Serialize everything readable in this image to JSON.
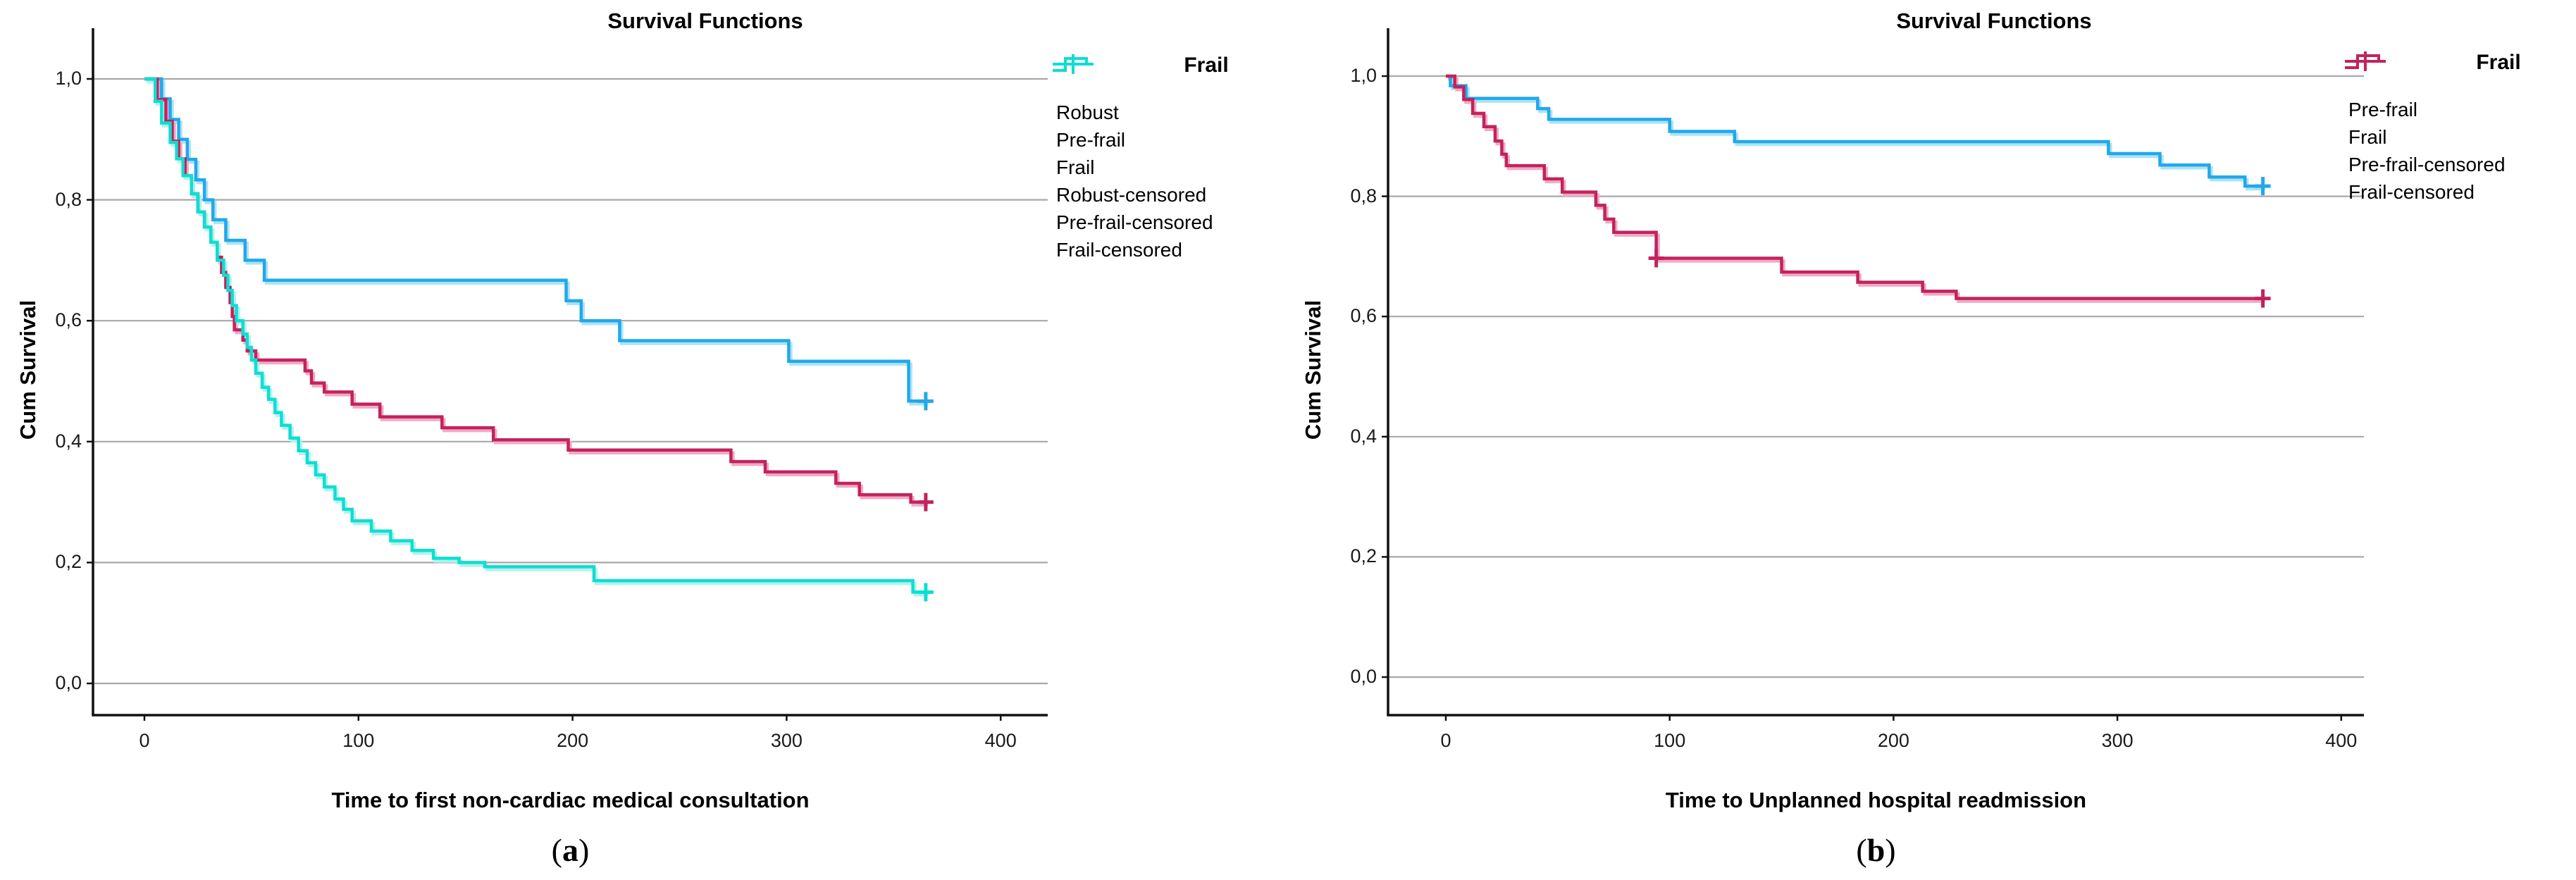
{
  "figure": {
    "background": "#ffffff",
    "panel_count": 2
  },
  "colors": {
    "blue": "#23A8E8",
    "blue_shadow": "#A9E4F9",
    "crimson": "#C2235C",
    "crimson_shadow": "#F2A9C6",
    "cyan": "#0EDED2",
    "cyan_shadow": "#AEF4EE",
    "gridline": "#A8A8A8",
    "axis": "#111111",
    "text": "#000000"
  },
  "chart_data": [
    {
      "type": "line",
      "step": true,
      "title": "Survival Functions",
      "xlabel": "Time to first non-cardiac medical consultation",
      "ylabel": "Cum Survival",
      "legend_title": "Frail",
      "legend_position": "right",
      "grid": true,
      "caption": {
        "open": "(",
        "letter": "a",
        "close": ")"
      },
      "xlim": [
        -24,
        422
      ],
      "ylim": [
        -0.05,
        1.08
      ],
      "xticks": [
        0,
        100,
        200,
        300,
        400
      ],
      "xtick_labels": [
        "0",
        "100",
        "200",
        "300",
        "400"
      ],
      "yticks": [
        1.0,
        0.8,
        0.6,
        0.4,
        0.2,
        0.0
      ],
      "ytick_labels": [
        "1,0",
        "0,8",
        "0,6",
        "0,4",
        "0,2",
        "0,0"
      ],
      "series": [
        {
          "name": "Robust",
          "color": "#23A8E8",
          "shadow": "#A9E4F9",
          "points": [
            [
              0,
              1
            ],
            [
              8,
              0.967
            ],
            [
              12,
              0.933
            ],
            [
              16,
              0.9
            ],
            [
              20,
              0.867
            ],
            [
              24,
              0.833
            ],
            [
              28,
              0.8
            ],
            [
              32,
              0.767
            ],
            [
              38,
              0.733
            ],
            [
              47,
              0.7
            ],
            [
              56,
              0.667
            ],
            [
              197,
              0.633
            ],
            [
              204,
              0.6
            ],
            [
              222,
              0.567
            ],
            [
              301,
              0.533
            ],
            [
              357,
              0.467
            ],
            [
              365,
              0.467
            ]
          ],
          "censored": [
            [
              365,
              0.467
            ]
          ]
        },
        {
          "name": "Pre-frail",
          "color": "#C2235C",
          "shadow": "#F2A9C6",
          "points": [
            [
              0,
              1
            ],
            [
              6,
              0.966
            ],
            [
              10,
              0.93
            ],
            [
              13,
              0.897
            ],
            [
              16,
              0.868
            ],
            [
              19,
              0.84
            ],
            [
              22,
              0.81
            ],
            [
              25,
              0.78
            ],
            [
              28,
              0.755
            ],
            [
              31,
              0.73
            ],
            [
              34,
              0.705
            ],
            [
              36,
              0.68
            ],
            [
              38,
              0.655
            ],
            [
              40,
              0.63
            ],
            [
              41,
              0.607
            ],
            [
              42,
              0.585
            ],
            [
              46,
              0.568
            ],
            [
              48,
              0.55
            ],
            [
              52,
              0.535
            ],
            [
              75,
              0.517
            ],
            [
              78,
              0.497
            ],
            [
              84,
              0.482
            ],
            [
              97,
              0.462
            ],
            [
              110,
              0.441
            ],
            [
              139,
              0.423
            ],
            [
              163,
              0.403
            ],
            [
              198,
              0.386
            ],
            [
              274,
              0.367
            ],
            [
              290,
              0.35
            ],
            [
              323,
              0.331
            ],
            [
              334,
              0.312
            ],
            [
              358,
              0.3
            ],
            [
              365,
              0.3
            ]
          ],
          "censored": [
            [
              365,
              0.3
            ]
          ]
        },
        {
          "name": "Frail",
          "color": "#0EDED2",
          "shadow": "#AEF4EE",
          "points": [
            [
              0,
              1
            ],
            [
              5,
              0.963
            ],
            [
              8,
              0.927
            ],
            [
              12,
              0.895
            ],
            [
              15,
              0.868
            ],
            [
              18,
              0.84
            ],
            [
              22,
              0.81
            ],
            [
              25,
              0.78
            ],
            [
              28,
              0.755
            ],
            [
              31,
              0.73
            ],
            [
              34,
              0.7
            ],
            [
              37,
              0.675
            ],
            [
              39,
              0.65
            ],
            [
              41,
              0.625
            ],
            [
              43,
              0.6
            ],
            [
              46,
              0.578
            ],
            [
              48,
              0.556
            ],
            [
              50,
              0.535
            ],
            [
              52,
              0.513
            ],
            [
              55,
              0.49
            ],
            [
              58,
              0.47
            ],
            [
              61,
              0.448
            ],
            [
              64,
              0.427
            ],
            [
              68,
              0.406
            ],
            [
              72,
              0.385
            ],
            [
              76,
              0.365
            ],
            [
              80,
              0.345
            ],
            [
              84,
              0.325
            ],
            [
              89,
              0.305
            ],
            [
              93,
              0.288
            ],
            [
              97,
              0.269
            ],
            [
              106,
              0.252
            ],
            [
              115,
              0.236
            ],
            [
              125,
              0.22
            ],
            [
              135,
              0.207
            ],
            [
              147,
              0.2
            ],
            [
              159,
              0.193
            ],
            [
              210,
              0.17
            ],
            [
              359,
              0.151
            ],
            [
              365,
              0.151
            ]
          ],
          "censored": [
            [
              365,
              0.151
            ]
          ]
        }
      ],
      "legend": [
        {
          "label": "Robust",
          "marker": "step",
          "color": "#23A8E8"
        },
        {
          "label": "Pre-frail",
          "marker": "step",
          "color": "#C2235C"
        },
        {
          "label": "Frail",
          "marker": "step",
          "color": "#0EDED2"
        },
        {
          "label": "Robust-censored",
          "marker": "plus",
          "color": "#23A8E8"
        },
        {
          "label": "Pre-frail-censored",
          "marker": "plus",
          "color": "#C2235C"
        },
        {
          "label": "Frail-censored",
          "marker": "plus",
          "color": "#0EDED2"
        }
      ]
    },
    {
      "type": "line",
      "step": true,
      "title": "Survival Functions",
      "xlabel": "Time to Unplanned hospital readmission",
      "ylabel": "Cum Survival",
      "legend_title": "Frail",
      "legend_position": "right",
      "grid": true,
      "caption": {
        "open": "(",
        "letter": "b",
        "close": ")"
      },
      "xlim": [
        -30,
        410
      ],
      "ylim": [
        -0.05,
        1.08
      ],
      "xticks": [
        0,
        100,
        200,
        300,
        400
      ],
      "xtick_labels": [
        "0",
        "100",
        "200",
        "300",
        "400"
      ],
      "yticks": [
        1.0,
        0.8,
        0.6,
        0.4,
        0.2,
        0.0
      ],
      "ytick_labels": [
        "1,0",
        "0,8",
        "0,6",
        "0,4",
        "0,2",
        "0,0"
      ],
      "series": [
        {
          "name": "Pre-frail",
          "color": "#23A8E8",
          "shadow": "#A9E4F9",
          "points": [
            [
              0,
              1
            ],
            [
              2,
              0.984
            ],
            [
              9,
              0.963
            ],
            [
              41,
              0.946
            ],
            [
              46,
              0.928
            ],
            [
              100,
              0.908
            ],
            [
              129,
              0.891
            ],
            [
              296,
              0.871
            ],
            [
              319,
              0.852
            ],
            [
              341,
              0.832
            ],
            [
              357,
              0.817
            ],
            [
              365,
              0.817
            ]
          ],
          "censored": [
            [
              365,
              0.817
            ]
          ]
        },
        {
          "name": "Frail",
          "color": "#C2235C",
          "shadow": "#F2A9C6",
          "points": [
            [
              0,
              1
            ],
            [
              4,
              0.982
            ],
            [
              8,
              0.961
            ],
            [
              12,
              0.938
            ],
            [
              17,
              0.916
            ],
            [
              22,
              0.892
            ],
            [
              25,
              0.87
            ],
            [
              27,
              0.851
            ],
            [
              44,
              0.829
            ],
            [
              52,
              0.807
            ],
            [
              67,
              0.785
            ],
            [
              71,
              0.762
            ],
            [
              75,
              0.74
            ],
            [
              94,
              0.697
            ],
            [
              150,
              0.674
            ],
            [
              184,
              0.657
            ],
            [
              213,
              0.642
            ],
            [
              228,
              0.63
            ],
            [
              365,
              0.63
            ]
          ],
          "censored": [
            [
              94,
              0.697
            ],
            [
              365,
              0.63
            ]
          ]
        }
      ],
      "legend": [
        {
          "label": "Pre-frail",
          "marker": "step",
          "color": "#23A8E8"
        },
        {
          "label": "Frail",
          "marker": "step",
          "color": "#C2235C"
        },
        {
          "label": "Pre-frail-censored",
          "marker": "plus",
          "color": "#23A8E8"
        },
        {
          "label": "Frail-censored",
          "marker": "plus",
          "color": "#C2235C"
        }
      ]
    }
  ]
}
